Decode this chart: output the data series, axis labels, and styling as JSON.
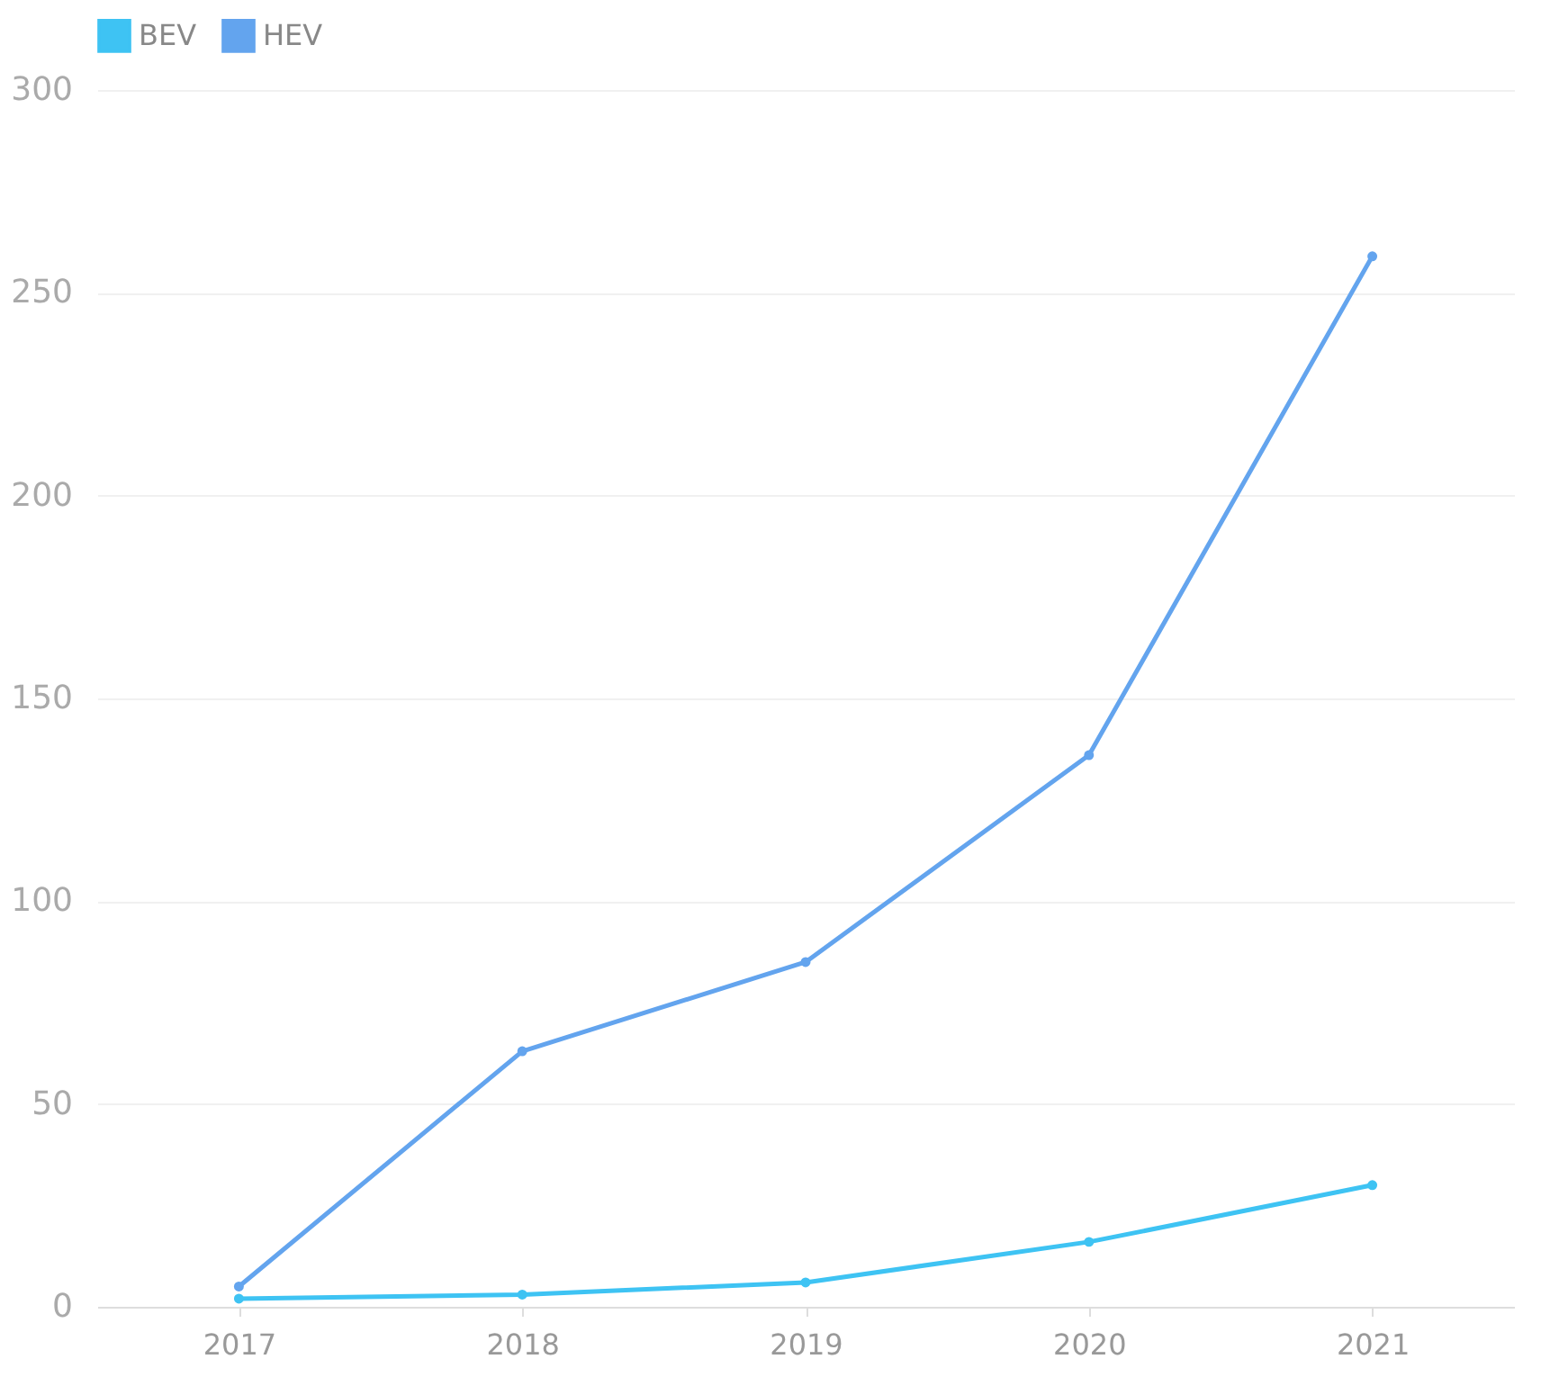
{
  "chart_data": {
    "type": "line",
    "categories": [
      "2017",
      "2018",
      "2019",
      "2020",
      "2021"
    ],
    "series": [
      {
        "name": "BEV",
        "color": "#3ec3f3",
        "values": [
          2,
          3,
          6,
          16,
          30
        ]
      },
      {
        "name": "HEV",
        "color": "#63a4ee",
        "values": [
          5,
          63,
          85,
          136,
          259
        ]
      }
    ],
    "ylim": [
      0,
      300
    ],
    "yticks": [
      0,
      50,
      100,
      150,
      200,
      250,
      300
    ],
    "grid": "y",
    "legend": "top",
    "marker": "circle",
    "line_style": "solid"
  }
}
